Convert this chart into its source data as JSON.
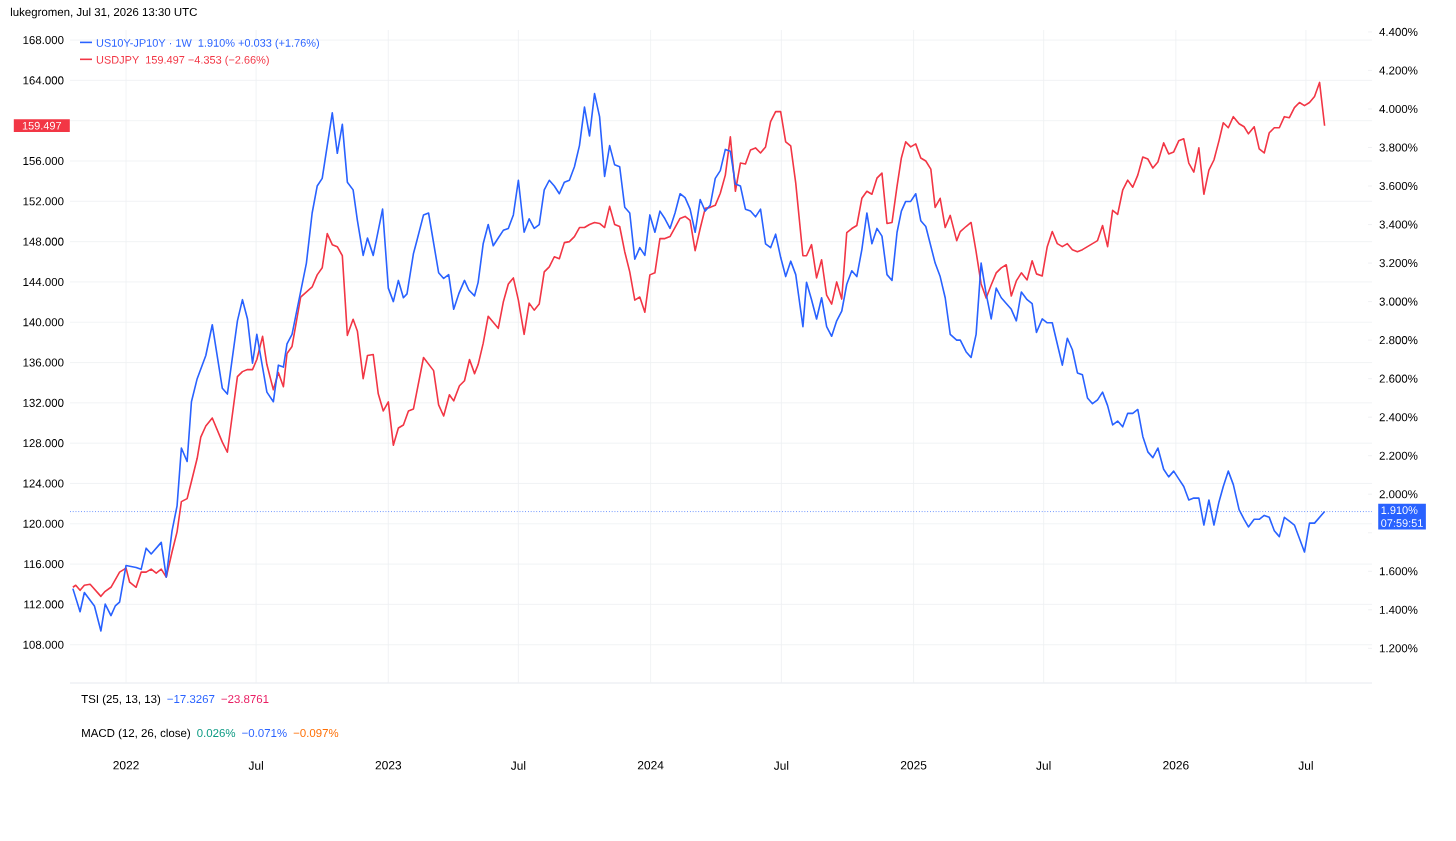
{
  "chart_data": {
    "type": "line",
    "title": "lukegromen, Jul 31, 2026 13:30 UTC",
    "xlim": [
      "2021-10-15",
      "2026-10-01"
    ],
    "xticks": [
      {
        "value": "2022-01-01",
        "label": "2022"
      },
      {
        "value": "2022-07-01",
        "label": "Jul"
      },
      {
        "value": "2023-01-01",
        "label": "2023"
      },
      {
        "value": "2023-07-01",
        "label": "Jul"
      },
      {
        "value": "2024-01-01",
        "label": "2024"
      },
      {
        "value": "2024-07-01",
        "label": "Jul"
      },
      {
        "value": "2025-01-01",
        "label": "2025"
      },
      {
        "value": "2025-07-01",
        "label": "Jul"
      },
      {
        "value": "2026-01-01",
        "label": "2026"
      },
      {
        "value": "2026-07-01",
        "label": "Jul"
      }
    ],
    "ylim": [
      104.2,
      169
    ],
    "yticks": [
      {
        "value": 108,
        "label": "108.000"
      },
      {
        "value": 112,
        "label": "112.000"
      },
      {
        "value": 116,
        "label": "116.000"
      },
      {
        "value": 120,
        "label": "120.000"
      },
      {
        "value": 124,
        "label": "124.000"
      },
      {
        "value": 128,
        "label": "128.000"
      },
      {
        "value": 132,
        "label": "132.000"
      },
      {
        "value": 136,
        "label": "136.000"
      },
      {
        "value": 140,
        "label": "140.000"
      },
      {
        "value": 144,
        "label": "144.000"
      },
      {
        "value": 148,
        "label": "148.000"
      },
      {
        "value": 152,
        "label": "152.000"
      },
      {
        "value": 156,
        "label": "156.000"
      },
      {
        "value": 160,
        "label": null
      },
      {
        "value": 164,
        "label": "164.000"
      },
      {
        "value": 168,
        "label": "168.000"
      }
    ],
    "y2lim": [
      1.02,
      4.41
    ],
    "y2ticks": [
      {
        "value": 1.2,
        "label": "1.200%"
      },
      {
        "value": 1.4,
        "label": "1.400%"
      },
      {
        "value": 1.6,
        "label": "1.600%"
      },
      {
        "value": 1.8,
        "label": null
      },
      {
        "value": 2.0,
        "label": "2.000%"
      },
      {
        "value": 2.2,
        "label": "2.200%"
      },
      {
        "value": 2.4,
        "label": "2.400%"
      },
      {
        "value": 2.6,
        "label": "2.600%"
      },
      {
        "value": 2.8,
        "label": "2.800%"
      },
      {
        "value": 3.0,
        "label": "3.000%"
      },
      {
        "value": 3.2,
        "label": "3.200%"
      },
      {
        "value": 3.4,
        "label": "3.400%"
      },
      {
        "value": 3.6,
        "label": "3.600%"
      },
      {
        "value": 3.8,
        "label": "3.800%"
      },
      {
        "value": 4.0,
        "label": "4.000%"
      },
      {
        "value": 4.2,
        "label": "4.200%"
      },
      {
        "value": 4.4,
        "label": "4.400%"
      }
    ],
    "grid": true,
    "legend": "top left",
    "marker": "none",
    "line_style": "solid",
    "series": [
      {
        "name": "US10Y-JP10Y · 1W",
        "color": "#2962ff",
        "axis": "y2",
        "x": [
          "2021-10-19",
          "2021-10-29",
          "2021-11-04",
          "2021-11-18",
          "2021-11-27",
          "2021-12-03",
          "2021-12-11",
          "2021-12-17",
          "2021-12-23",
          "2022-01-01",
          "2022-01-15",
          "2022-01-22",
          "2022-01-29",
          "2022-02-05",
          "2022-02-19",
          "2022-02-26",
          "2022-03-06",
          "2022-03-13",
          "2022-03-19",
          "2022-03-27",
          "2022-04-02",
          "2022-04-10",
          "2022-04-22",
          "2022-05-01",
          "2022-05-15",
          "2022-05-22",
          "2022-06-05",
          "2022-06-12",
          "2022-06-19",
          "2022-06-26",
          "2022-07-02",
          "2022-07-16",
          "2022-07-25",
          "2022-08-01",
          "2022-08-08",
          "2022-08-13",
          "2022-08-20",
          "2022-09-09",
          "2022-09-17",
          "2022-09-24",
          "2022-10-01",
          "2022-10-15",
          "2022-10-22",
          "2022-10-29",
          "2022-11-05",
          "2022-11-13",
          "2022-11-19",
          "2022-11-27",
          "2022-12-03",
          "2022-12-11",
          "2022-12-24",
          "2023-01-01",
          "2023-01-08",
          "2023-01-15",
          "2023-01-22",
          "2023-01-27",
          "2023-02-05",
          "2023-02-10",
          "2023-02-19",
          "2023-02-26",
          "2023-03-12",
          "2023-03-19",
          "2023-03-26",
          "2023-04-02",
          "2023-04-09",
          "2023-04-17",
          "2023-04-23",
          "2023-05-01",
          "2023-05-06",
          "2023-05-13",
          "2023-05-20",
          "2023-05-27",
          "2023-06-03",
          "2023-06-10",
          "2023-06-17",
          "2023-06-24",
          "2023-07-01",
          "2023-07-09",
          "2023-07-16",
          "2023-07-23",
          "2023-07-30",
          "2023-08-06",
          "2023-08-13",
          "2023-08-20",
          "2023-08-27",
          "2023-09-03",
          "2023-09-10",
          "2023-09-17",
          "2023-09-24",
          "2023-10-01",
          "2023-10-08",
          "2023-10-15",
          "2023-10-22",
          "2023-10-29",
          "2023-11-05",
          "2023-11-12",
          "2023-11-19",
          "2023-11-26",
          "2023-12-03",
          "2023-12-10",
          "2023-12-17",
          "2023-12-24",
          "2023-12-31",
          "2024-01-07",
          "2024-01-14",
          "2024-01-21",
          "2024-01-28",
          "2024-02-04",
          "2024-02-11",
          "2024-02-18",
          "2024-02-25",
          "2024-03-03",
          "2024-03-10",
          "2024-03-17",
          "2024-03-24",
          "2024-03-31",
          "2024-04-07",
          "2024-04-14",
          "2024-04-21",
          "2024-04-28",
          "2024-05-05",
          "2024-05-12",
          "2024-05-19",
          "2024-05-26",
          "2024-06-02",
          "2024-06-09",
          "2024-06-16",
          "2024-06-23",
          "2024-06-30",
          "2024-07-07",
          "2024-07-14",
          "2024-07-21",
          "2024-07-31",
          "2024-08-05",
          "2024-08-12",
          "2024-08-19",
          "2024-08-26",
          "2024-09-02",
          "2024-09-09",
          "2024-09-16",
          "2024-09-23",
          "2024-09-30",
          "2024-10-07",
          "2024-10-14",
          "2024-10-21",
          "2024-10-28",
          "2024-11-04",
          "2024-11-11",
          "2024-11-18",
          "2024-11-25",
          "2024-12-02",
          "2024-12-09",
          "2024-12-15",
          "2024-12-21",
          "2024-12-28",
          "2025-01-04",
          "2025-01-11",
          "2025-01-18",
          "2025-01-31",
          "2025-02-07",
          "2025-02-14",
          "2025-02-21",
          "2025-03-02",
          "2025-03-07",
          "2025-03-15",
          "2025-03-22",
          "2025-03-29",
          "2025-04-05",
          "2025-04-12",
          "2025-04-19",
          "2025-04-26",
          "2025-05-03",
          "2025-05-10",
          "2025-05-17",
          "2025-05-24",
          "2025-05-31",
          "2025-06-08",
          "2025-06-15",
          "2025-06-21",
          "2025-06-29",
          "2025-07-06",
          "2025-07-13",
          "2025-07-20",
          "2025-07-27",
          "2025-08-03",
          "2025-08-10",
          "2025-08-17",
          "2025-08-24",
          "2025-08-31",
          "2025-09-07",
          "2025-09-14",
          "2025-09-21",
          "2025-09-28",
          "2025-10-05",
          "2025-10-12",
          "2025-10-19",
          "2025-10-26",
          "2025-11-02",
          "2025-11-09",
          "2025-11-16",
          "2025-11-23",
          "2025-11-30",
          "2025-12-07",
          "2025-12-15",
          "2025-12-22",
          "2025-12-29",
          "2026-01-05",
          "2026-01-12",
          "2026-01-19",
          "2026-01-26",
          "2026-02-02",
          "2026-02-09",
          "2026-02-16",
          "2026-02-23",
          "2026-03-02",
          "2026-03-08",
          "2026-03-15",
          "2026-03-22",
          "2026-03-30",
          "2026-04-06",
          "2026-04-12",
          "2026-04-20",
          "2026-04-27",
          "2026-05-04",
          "2026-05-11",
          "2026-05-18",
          "2026-05-25",
          "2026-06-01",
          "2026-06-08",
          "2026-06-15",
          "2026-06-22",
          "2026-06-29",
          "2026-07-06",
          "2026-07-13",
          "2026-07-27"
        ],
        "values": [
          1.51,
          1.39,
          1.49,
          1.42,
          1.29,
          1.43,
          1.37,
          1.42,
          1.44,
          1.63,
          1.62,
          1.61,
          1.72,
          1.69,
          1.75,
          1.57,
          1.81,
          1.94,
          2.24,
          2.17,
          2.48,
          2.6,
          2.72,
          2.88,
          2.55,
          2.52,
          2.9,
          3.01,
          2.91,
          2.68,
          2.83,
          2.53,
          2.48,
          2.67,
          2.66,
          2.78,
          2.83,
          3.2,
          3.46,
          3.6,
          3.64,
          3.98,
          3.77,
          3.92,
          3.62,
          3.58,
          3.42,
          3.24,
          3.33,
          3.24,
          3.48,
          3.07,
          3.0,
          3.11,
          3.02,
          3.04,
          3.25,
          3.32,
          3.45,
          3.46,
          3.15,
          3.12,
          3.14,
          2.96,
          3.04,
          3.11,
          3.06,
          3.03,
          3.1,
          3.3,
          3.4,
          3.29,
          3.33,
          3.37,
          3.38,
          3.45,
          3.63,
          3.36,
          3.43,
          3.38,
          3.4,
          3.58,
          3.63,
          3.6,
          3.56,
          3.62,
          3.63,
          3.7,
          3.81,
          4.01,
          3.86,
          4.08,
          3.96,
          3.65,
          3.81,
          3.71,
          3.7,
          3.49,
          3.46,
          3.22,
          3.28,
          3.24,
          3.45,
          3.36,
          3.47,
          3.43,
          3.38,
          3.46,
          3.56,
          3.54,
          3.48,
          3.36,
          3.53,
          3.47,
          3.5,
          3.64,
          3.68,
          3.79,
          3.78,
          3.61,
          3.6,
          3.48,
          3.47,
          3.44,
          3.48,
          3.3,
          3.28,
          3.35,
          3.23,
          3.13,
          3.21,
          3.14,
          2.87,
          3.1,
          3.01,
          2.91,
          3.02,
          2.87,
          2.82,
          2.9,
          2.95,
          3.09,
          3.16,
          3.13,
          3.27,
          3.46,
          3.3,
          3.38,
          3.34,
          3.14,
          3.11,
          3.36,
          3.47,
          3.52,
          3.52,
          3.56,
          3.42,
          3.39,
          3.2,
          3.13,
          3.02,
          2.83,
          2.8,
          2.8,
          2.74,
          2.71,
          2.83,
          3.2,
          3.04,
          2.91,
          3.07,
          3.02,
          2.99,
          2.96,
          2.9,
          3.05,
          3.01,
          2.99,
          2.84,
          2.91,
          2.89,
          2.89,
          2.78,
          2.67,
          2.81,
          2.75,
          2.63,
          2.62,
          2.5,
          2.47,
          2.49,
          2.53,
          2.46,
          2.36,
          2.38,
          2.35,
          2.42,
          2.42,
          2.44,
          2.3,
          2.22,
          2.19,
          2.24,
          2.13,
          2.09,
          2.12,
          2.08,
          2.04,
          1.97,
          1.98,
          1.98,
          1.84,
          1.97,
          1.84,
          1.96,
          2.04,
          2.12,
          2.05,
          1.92,
          1.87,
          1.83,
          1.87,
          1.87,
          1.89,
          1.88,
          1.81,
          1.78,
          1.88,
          1.86,
          1.84,
          1.77,
          1.7,
          1.85,
          1.85,
          1.91
        ]
      },
      {
        "name": "USDJPY",
        "color": "#f23645",
        "x": [
          "2021-10-19",
          "2021-10-23",
          "2021-10-29",
          "2021-11-04",
          "2021-11-12",
          "2021-11-27",
          "2021-12-03",
          "2021-12-11",
          "2021-12-23",
          "2022-01-01",
          "2022-01-06",
          "2022-01-15",
          "2022-01-22",
          "2022-01-29",
          "2022-02-05",
          "2022-02-12",
          "2022-02-19",
          "2022-02-26",
          "2022-03-06",
          "2022-03-13",
          "2022-03-19",
          "2022-03-27",
          "2022-04-02",
          "2022-04-10",
          "2022-04-15",
          "2022-04-22",
          "2022-05-01",
          "2022-05-15",
          "2022-05-22",
          "2022-06-05",
          "2022-06-12",
          "2022-06-19",
          "2022-06-26",
          "2022-07-02",
          "2022-07-10",
          "2022-07-16",
          "2022-07-25",
          "2022-08-01",
          "2022-08-08",
          "2022-08-13",
          "2022-08-20",
          "2022-09-01",
          "2022-09-17",
          "2022-09-24",
          "2022-10-01",
          "2022-10-08",
          "2022-10-15",
          "2022-10-22",
          "2022-10-29",
          "2022-11-05",
          "2022-11-13",
          "2022-11-19",
          "2022-11-27",
          "2022-12-03",
          "2022-12-11",
          "2022-12-18",
          "2022-12-25",
          "2023-01-01",
          "2023-01-08",
          "2023-01-15",
          "2023-01-22",
          "2023-01-29",
          "2023-02-05",
          "2023-02-19",
          "2023-03-05",
          "2023-03-12",
          "2023-03-19",
          "2023-03-27",
          "2023-04-02",
          "2023-04-10",
          "2023-04-17",
          "2023-04-24",
          "2023-05-01",
          "2023-05-06",
          "2023-05-13",
          "2023-05-20",
          "2023-06-03",
          "2023-06-10",
          "2023-06-17",
          "2023-06-24",
          "2023-07-01",
          "2023-07-09",
          "2023-07-16",
          "2023-07-23",
          "2023-07-30",
          "2023-08-06",
          "2023-08-13",
          "2023-08-20",
          "2023-08-27",
          "2023-09-03",
          "2023-09-10",
          "2023-09-17",
          "2023-09-24",
          "2023-10-01",
          "2023-10-08",
          "2023-10-15",
          "2023-10-22",
          "2023-10-29",
          "2023-11-05",
          "2023-11-12",
          "2023-11-19",
          "2023-11-26",
          "2023-12-03",
          "2023-12-10",
          "2023-12-17",
          "2023-12-24",
          "2023-12-31",
          "2024-01-07",
          "2024-01-14",
          "2024-01-21",
          "2024-01-28",
          "2024-02-04",
          "2024-02-11",
          "2024-02-18",
          "2024-02-25",
          "2024-03-03",
          "2024-03-10",
          "2024-03-17",
          "2024-03-24",
          "2024-03-31",
          "2024-04-07",
          "2024-04-14",
          "2024-04-21",
          "2024-04-28",
          "2024-05-05",
          "2024-05-12",
          "2024-05-19",
          "2024-05-26",
          "2024-06-02",
          "2024-06-09",
          "2024-06-16",
          "2024-06-23",
          "2024-06-30",
          "2024-07-07",
          "2024-07-14",
          "2024-07-21",
          "2024-07-31",
          "2024-08-05",
          "2024-08-12",
          "2024-08-19",
          "2024-08-26",
          "2024-09-02",
          "2024-09-09",
          "2024-09-16",
          "2024-09-23",
          "2024-09-30",
          "2024-10-07",
          "2024-10-14",
          "2024-10-21",
          "2024-10-28",
          "2024-11-04",
          "2024-11-11",
          "2024-11-18",
          "2024-11-25",
          "2024-12-02",
          "2024-12-09",
          "2024-12-15",
          "2024-12-21",
          "2024-12-28",
          "2025-01-04",
          "2025-01-11",
          "2025-01-18",
          "2025-01-25",
          "2025-01-31",
          "2025-02-07",
          "2025-02-14",
          "2025-02-21",
          "2025-03-02",
          "2025-03-07",
          "2025-03-15",
          "2025-03-22",
          "2025-03-29",
          "2025-04-05",
          "2025-04-12",
          "2025-04-19",
          "2025-04-26",
          "2025-05-03",
          "2025-05-10",
          "2025-05-17",
          "2025-05-24",
          "2025-05-31",
          "2025-06-08",
          "2025-06-15",
          "2025-06-21",
          "2025-06-29",
          "2025-07-06",
          "2025-07-13",
          "2025-07-20",
          "2025-07-27",
          "2025-08-03",
          "2025-08-10",
          "2025-08-17",
          "2025-08-24",
          "2025-08-31",
          "2025-09-07",
          "2025-09-14",
          "2025-09-21",
          "2025-09-28",
          "2025-10-05",
          "2025-10-12",
          "2025-10-19",
          "2025-10-26",
          "2025-11-02",
          "2025-11-09",
          "2025-11-16",
          "2025-11-23",
          "2025-11-30",
          "2025-12-07",
          "2025-12-15",
          "2025-12-22",
          "2025-12-29",
          "2026-01-05",
          "2026-01-12",
          "2026-01-19",
          "2026-01-26",
          "2026-02-02",
          "2026-02-09",
          "2026-02-16",
          "2026-02-23",
          "2026-03-02",
          "2026-03-08",
          "2026-03-15",
          "2026-03-22",
          "2026-03-30",
          "2026-04-06",
          "2026-04-12",
          "2026-04-20",
          "2026-04-27",
          "2026-05-04",
          "2026-05-11",
          "2026-05-18",
          "2026-05-25",
          "2026-06-01",
          "2026-06-08",
          "2026-06-15",
          "2026-06-22",
          "2026-06-29",
          "2026-07-06",
          "2026-07-13",
          "2026-07-20",
          "2026-07-27"
        ],
        "values": [
          113.7,
          113.9,
          113.4,
          113.9,
          114.0,
          112.8,
          113.3,
          113.7,
          115.2,
          115.6,
          114.2,
          113.7,
          115.2,
          115.2,
          115.5,
          115.1,
          115.5,
          114.7,
          117.2,
          119.2,
          122.2,
          122.5,
          124.2,
          126.5,
          128.6,
          129.7,
          130.5,
          128.1,
          127.1,
          134.6,
          135.1,
          135.3,
          135.3,
          136.3,
          138.6,
          135.8,
          133.3,
          135.0,
          133.6,
          136.9,
          137.6,
          142.5,
          143.5,
          144.7,
          145.4,
          148.8,
          147.7,
          147.5,
          146.6,
          138.7,
          140.3,
          139.1,
          134.4,
          136.7,
          136.8,
          132.9,
          131.2,
          132.1,
          127.8,
          129.5,
          129.8,
          131.2,
          131.4,
          136.5,
          135.2,
          131.8,
          130.7,
          132.8,
          132.2,
          133.7,
          134.2,
          136.3,
          134.9,
          135.8,
          137.9,
          140.6,
          139.4,
          142.0,
          143.8,
          144.4,
          142.2,
          138.8,
          141.9,
          141.2,
          141.8,
          145.0,
          145.5,
          146.5,
          146.3,
          147.9,
          148.0,
          148.5,
          149.4,
          149.4,
          149.7,
          149.9,
          149.8,
          149.4,
          151.5,
          149.7,
          149.5,
          147.0,
          145.0,
          142.2,
          142.5,
          141.0,
          144.7,
          144.9,
          148.3,
          148.3,
          148.5,
          149.4,
          150.3,
          150.5,
          150.1,
          147.1,
          149.3,
          151.3,
          151.4,
          151.6,
          152.8,
          154.6,
          158.4,
          153.0,
          155.8,
          155.7,
          157.1,
          157.3,
          156.8,
          157.4,
          159.9,
          160.9,
          160.9,
          157.9,
          157.5,
          153.8,
          146.6,
          146.6,
          147.7,
          144.4,
          146.2,
          142.7,
          141.8,
          144.0,
          142.3,
          148.9,
          149.3,
          149.6,
          152.3,
          153.0,
          152.7,
          154.3,
          154.8,
          149.8,
          149.9,
          153.5,
          156.3,
          157.9,
          157.4,
          157.7,
          156.3,
          156.0,
          155.2,
          151.4,
          152.3,
          149.4,
          150.6,
          148.1,
          149.0,
          149.5,
          149.9,
          147.0,
          143.8,
          142.4,
          143.7,
          144.9,
          145.4,
          145.7,
          142.6,
          144.1,
          144.9,
          144.2,
          146.1,
          144.8,
          144.6,
          147.5,
          149.0,
          147.8,
          147.5,
          147.8,
          147.2,
          147.0,
          147.2,
          147.5,
          147.8,
          148.1,
          149.6,
          147.5,
          151.1,
          150.7,
          153.1,
          154.1,
          153.4,
          154.6,
          156.4,
          156.2,
          155.3,
          155.9,
          157.8,
          156.7,
          156.9,
          158.0,
          158.2,
          155.8,
          154.9,
          157.3,
          152.7,
          155.1,
          156.1,
          158.0,
          159.8,
          159.3,
          160.4,
          159.7,
          159.4,
          158.7,
          159.4,
          157.2,
          156.8,
          158.8,
          159.3,
          159.3,
          160.4,
          160.3,
          161.3,
          161.8,
          161.5,
          161.8,
          162.4,
          163.8,
          159.5
        ]
      }
    ],
    "ref_lines": [
      {
        "axis": "y2",
        "value": 1.91,
        "label": "1.910%",
        "color": "#2962ff",
        "line_style": "dotted"
      }
    ],
    "annotations": [
      "1.910%  +0.033 (+1.76%)",
      "159.497  −4.353 (−2.66%)",
      "TSI (25, 13, 13)",
      "−17.3267",
      "−23.8761",
      "MACD (12, 26, close)",
      "0.026%",
      "−0.071%",
      "−0.097%",
      "159.497",
      "07:59:51"
    ]
  }
}
